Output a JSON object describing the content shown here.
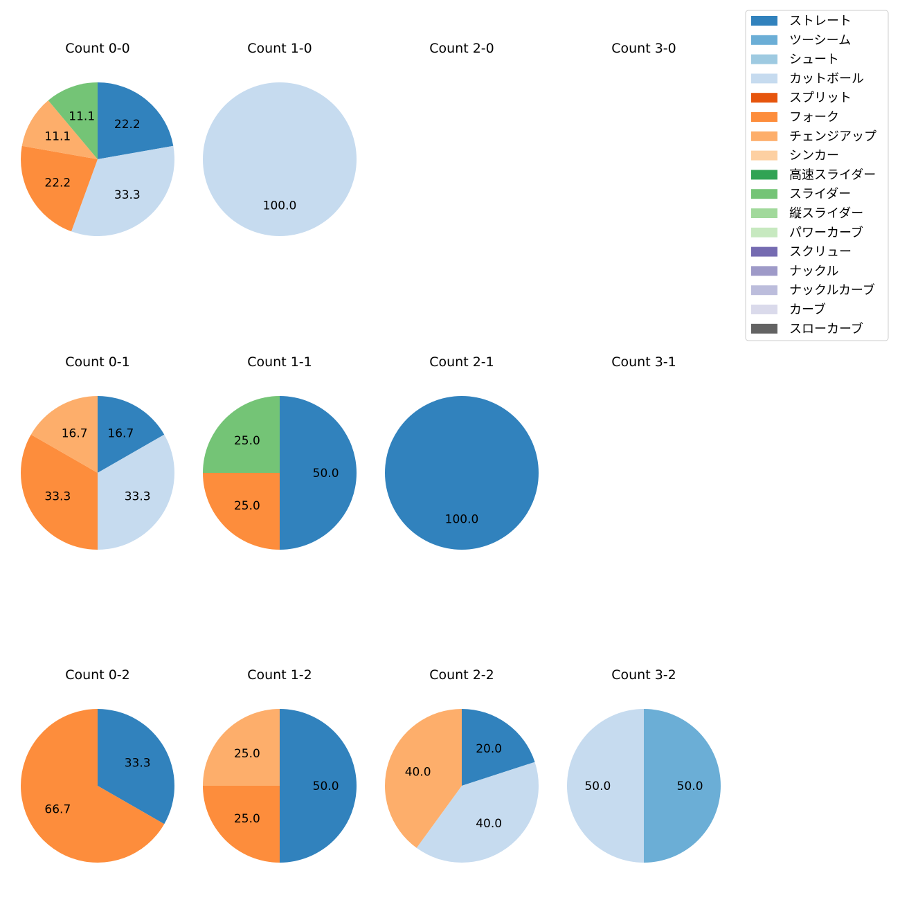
{
  "legend": {
    "items": [
      {
        "label": "ストレート",
        "color": "#3182bd"
      },
      {
        "label": "ツーシーム",
        "color": "#6baed6"
      },
      {
        "label": "シュート",
        "color": "#9ecae1"
      },
      {
        "label": "カットボール",
        "color": "#c6dbef"
      },
      {
        "label": "スプリット",
        "color": "#e6550d"
      },
      {
        "label": "フォーク",
        "color": "#fd8d3c"
      },
      {
        "label": "チェンジアップ",
        "color": "#fdae6b"
      },
      {
        "label": "シンカー",
        "color": "#fdd0a2"
      },
      {
        "label": "高速スライダー",
        "color": "#31a354"
      },
      {
        "label": "スライダー",
        "color": "#74c476"
      },
      {
        "label": "縦スライダー",
        "color": "#a1d99b"
      },
      {
        "label": "パワーカーブ",
        "color": "#c7e9c0"
      },
      {
        "label": "スクリュー",
        "color": "#756bb1"
      },
      {
        "label": "ナックル",
        "color": "#9e9ac8"
      },
      {
        "label": "ナックルカーブ",
        "color": "#bcbddc"
      },
      {
        "label": "カーブ",
        "color": "#dadaeb"
      },
      {
        "label": "スローカーブ",
        "color": "#636363"
      }
    ]
  },
  "chart_data": [
    {
      "type": "pie",
      "title": "Count 0-0",
      "slices": [
        {
          "name": "ストレート",
          "value": 22.2
        },
        {
          "name": "カットボール",
          "value": 33.3
        },
        {
          "name": "フォーク",
          "value": 22.2
        },
        {
          "name": "チェンジアップ",
          "value": 11.1
        },
        {
          "name": "スライダー",
          "value": 11.1
        }
      ]
    },
    {
      "type": "pie",
      "title": "Count 1-0",
      "slices": [
        {
          "name": "カットボール",
          "value": 100.0
        }
      ]
    },
    {
      "type": "pie",
      "title": "Count 2-0",
      "slices": []
    },
    {
      "type": "pie",
      "title": "Count 3-0",
      "slices": []
    },
    {
      "type": "pie",
      "title": "Count 0-1",
      "slices": [
        {
          "name": "ストレート",
          "value": 16.7
        },
        {
          "name": "カットボール",
          "value": 33.3
        },
        {
          "name": "フォーク",
          "value": 33.3
        },
        {
          "name": "チェンジアップ",
          "value": 16.7
        }
      ]
    },
    {
      "type": "pie",
      "title": "Count 1-1",
      "slices": [
        {
          "name": "ストレート",
          "value": 50.0
        },
        {
          "name": "フォーク",
          "value": 25.0
        },
        {
          "name": "スライダー",
          "value": 25.0
        }
      ]
    },
    {
      "type": "pie",
      "title": "Count 2-1",
      "slices": [
        {
          "name": "ストレート",
          "value": 100.0
        }
      ]
    },
    {
      "type": "pie",
      "title": "Count 3-1",
      "slices": []
    },
    {
      "type": "pie",
      "title": "Count 0-2",
      "slices": [
        {
          "name": "ストレート",
          "value": 33.3
        },
        {
          "name": "フォーク",
          "value": 66.7
        }
      ]
    },
    {
      "type": "pie",
      "title": "Count 1-2",
      "slices": [
        {
          "name": "ストレート",
          "value": 50.0
        },
        {
          "name": "フォーク",
          "value": 25.0
        },
        {
          "name": "チェンジアップ",
          "value": 25.0
        }
      ]
    },
    {
      "type": "pie",
      "title": "Count 2-2",
      "slices": [
        {
          "name": "ストレート",
          "value": 20.0
        },
        {
          "name": "カットボール",
          "value": 40.0
        },
        {
          "name": "チェンジアップ",
          "value": 40.0
        }
      ]
    },
    {
      "type": "pie",
      "title": "Count 3-2",
      "slices": [
        {
          "name": "ツーシーム",
          "value": 50.0
        },
        {
          "name": "カットボール",
          "value": 50.0
        }
      ]
    }
  ]
}
